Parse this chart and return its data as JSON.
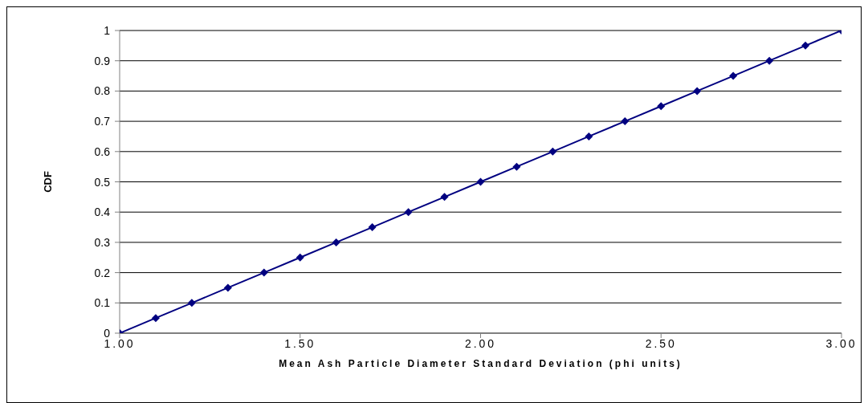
{
  "chart_data": {
    "type": "line",
    "xlabel": "Mean Ash Particle Diameter Standard Deviation (phi units)",
    "ylabel": "CDF",
    "x": [
      1.0,
      1.1,
      1.2,
      1.3,
      1.4,
      1.5,
      1.6,
      1.7,
      1.8,
      1.9,
      2.0,
      2.1,
      2.2,
      2.3,
      2.4,
      2.5,
      2.6,
      2.7,
      2.8,
      2.9,
      3.0
    ],
    "series": [
      {
        "color": "#000080",
        "values": [
          0,
          0.05,
          0.1,
          0.15,
          0.2,
          0.25,
          0.3,
          0.35,
          0.4,
          0.45,
          0.5,
          0.55,
          0.6,
          0.65,
          0.7,
          0.75,
          0.8,
          0.85,
          0.9,
          0.95,
          1.0
        ]
      }
    ],
    "xlim": [
      1.0,
      3.0
    ],
    "xticks": [
      {
        "value": 1.0,
        "label": "1.00"
      },
      {
        "value": 1.5,
        "label": "1.50"
      },
      {
        "value": 2.0,
        "label": "2.00"
      },
      {
        "value": 2.5,
        "label": "2.50"
      },
      {
        "value": 3.0,
        "label": "3.00"
      }
    ],
    "ylim": [
      0,
      1
    ],
    "yticks": [
      0,
      0.1,
      0.2,
      0.3,
      0.4,
      0.5,
      0.6,
      0.7,
      0.8,
      0.9,
      1
    ],
    "grid": "y",
    "marker": "diamond",
    "line_style": "solid"
  }
}
